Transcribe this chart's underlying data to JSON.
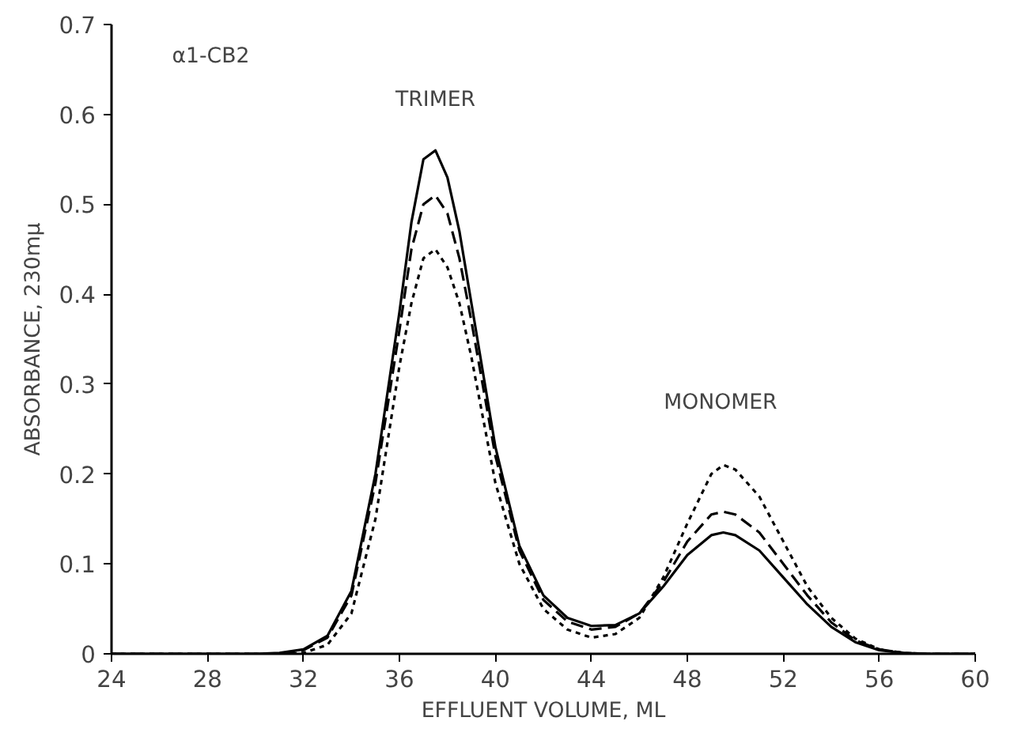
{
  "chart_data": {
    "type": "line",
    "xlabel": "EFFLUENT VOLUME, ML",
    "ylabel": "ABSORBANCE, 230mμ",
    "annotations": [
      "α1-CB2",
      "TRIMER",
      "MONOMER"
    ],
    "x": [
      24,
      28,
      30,
      31,
      32,
      33,
      34,
      35,
      36,
      36.5,
      37,
      37.5,
      38,
      38.5,
      39,
      40,
      41,
      42,
      43,
      44,
      45,
      46,
      47,
      48,
      49,
      49.5,
      50,
      51,
      52,
      53,
      54,
      55,
      56,
      57,
      58,
      60
    ],
    "series": [
      {
        "color": "#000000",
        "line_style": "solid",
        "values": [
          0,
          0,
          0,
          0.001,
          0.005,
          0.02,
          0.07,
          0.2,
          0.38,
          0.48,
          0.55,
          0.56,
          0.53,
          0.47,
          0.39,
          0.23,
          0.12,
          0.065,
          0.04,
          0.031,
          0.032,
          0.045,
          0.075,
          0.11,
          0.132,
          0.135,
          0.132,
          0.115,
          0.085,
          0.055,
          0.03,
          0.013,
          0.004,
          0.001,
          0,
          0
        ]
      },
      {
        "color": "#000000",
        "line_style": "dashed",
        "values": [
          0,
          0,
          0,
          0,
          0.004,
          0.018,
          0.065,
          0.19,
          0.36,
          0.45,
          0.5,
          0.51,
          0.49,
          0.44,
          0.37,
          0.22,
          0.115,
          0.06,
          0.036,
          0.027,
          0.03,
          0.045,
          0.08,
          0.125,
          0.155,
          0.158,
          0.155,
          0.135,
          0.1,
          0.065,
          0.035,
          0.015,
          0.005,
          0.001,
          0,
          0
        ]
      },
      {
        "color": "#000000",
        "line_style": "dotted",
        "values": [
          0,
          0,
          0,
          0,
          0.001,
          0.01,
          0.045,
          0.15,
          0.32,
          0.39,
          0.44,
          0.45,
          0.43,
          0.39,
          0.33,
          0.19,
          0.1,
          0.05,
          0.027,
          0.018,
          0.022,
          0.04,
          0.085,
          0.145,
          0.2,
          0.21,
          0.205,
          0.175,
          0.125,
          0.075,
          0.04,
          0.017,
          0.005,
          0.001,
          0,
          0
        ]
      }
    ],
    "xlim": [
      24,
      60
    ],
    "ylim": [
      0,
      0.7
    ],
    "xticks": [
      24,
      28,
      32,
      36,
      40,
      44,
      48,
      52,
      56,
      60
    ],
    "yticks": [
      0,
      0.1,
      0.2,
      0.3,
      0.4,
      0.5,
      0.6,
      0.7
    ],
    "grid": false
  }
}
